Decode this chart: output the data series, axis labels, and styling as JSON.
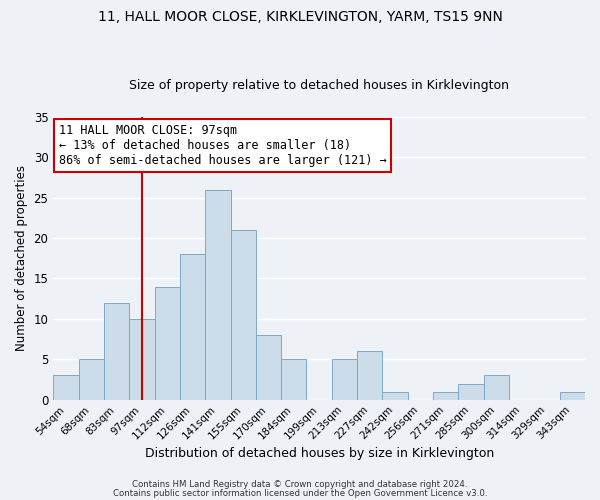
{
  "title": "11, HALL MOOR CLOSE, KIRKLEVINGTON, YARM, TS15 9NN",
  "subtitle": "Size of property relative to detached houses in Kirklevington",
  "xlabel": "Distribution of detached houses by size in Kirklevington",
  "ylabel": "Number of detached properties",
  "categories": [
    "54sqm",
    "68sqm",
    "83sqm",
    "97sqm",
    "112sqm",
    "126sqm",
    "141sqm",
    "155sqm",
    "170sqm",
    "184sqm",
    "199sqm",
    "213sqm",
    "227sqm",
    "242sqm",
    "256sqm",
    "271sqm",
    "285sqm",
    "300sqm",
    "314sqm",
    "329sqm",
    "343sqm"
  ],
  "values": [
    3,
    5,
    12,
    10,
    14,
    18,
    26,
    21,
    8,
    5,
    0,
    5,
    6,
    1,
    0,
    1,
    2,
    3,
    0,
    0,
    1
  ],
  "bar_color": "#ccdce8",
  "bar_edge_color": "#7aaac8",
  "vline_x_index": 3,
  "vline_color": "#cc0000",
  "ylim": [
    0,
    35
  ],
  "yticks": [
    0,
    5,
    10,
    15,
    20,
    25,
    30,
    35
  ],
  "annotation_title": "11 HALL MOOR CLOSE: 97sqm",
  "annotation_line1": "← 13% of detached houses are smaller (18)",
  "annotation_line2": "86% of semi-detached houses are larger (121) →",
  "annotation_box_facecolor": "#ffffff",
  "annotation_box_edgecolor": "#cc0000",
  "footer1": "Contains HM Land Registry data © Crown copyright and database right 2024.",
  "footer2": "Contains public sector information licensed under the Open Government Licence v3.0.",
  "background_color": "#eef2f7",
  "grid_color": "#ffffff",
  "title_fontsize": 10,
  "subtitle_fontsize": 9
}
